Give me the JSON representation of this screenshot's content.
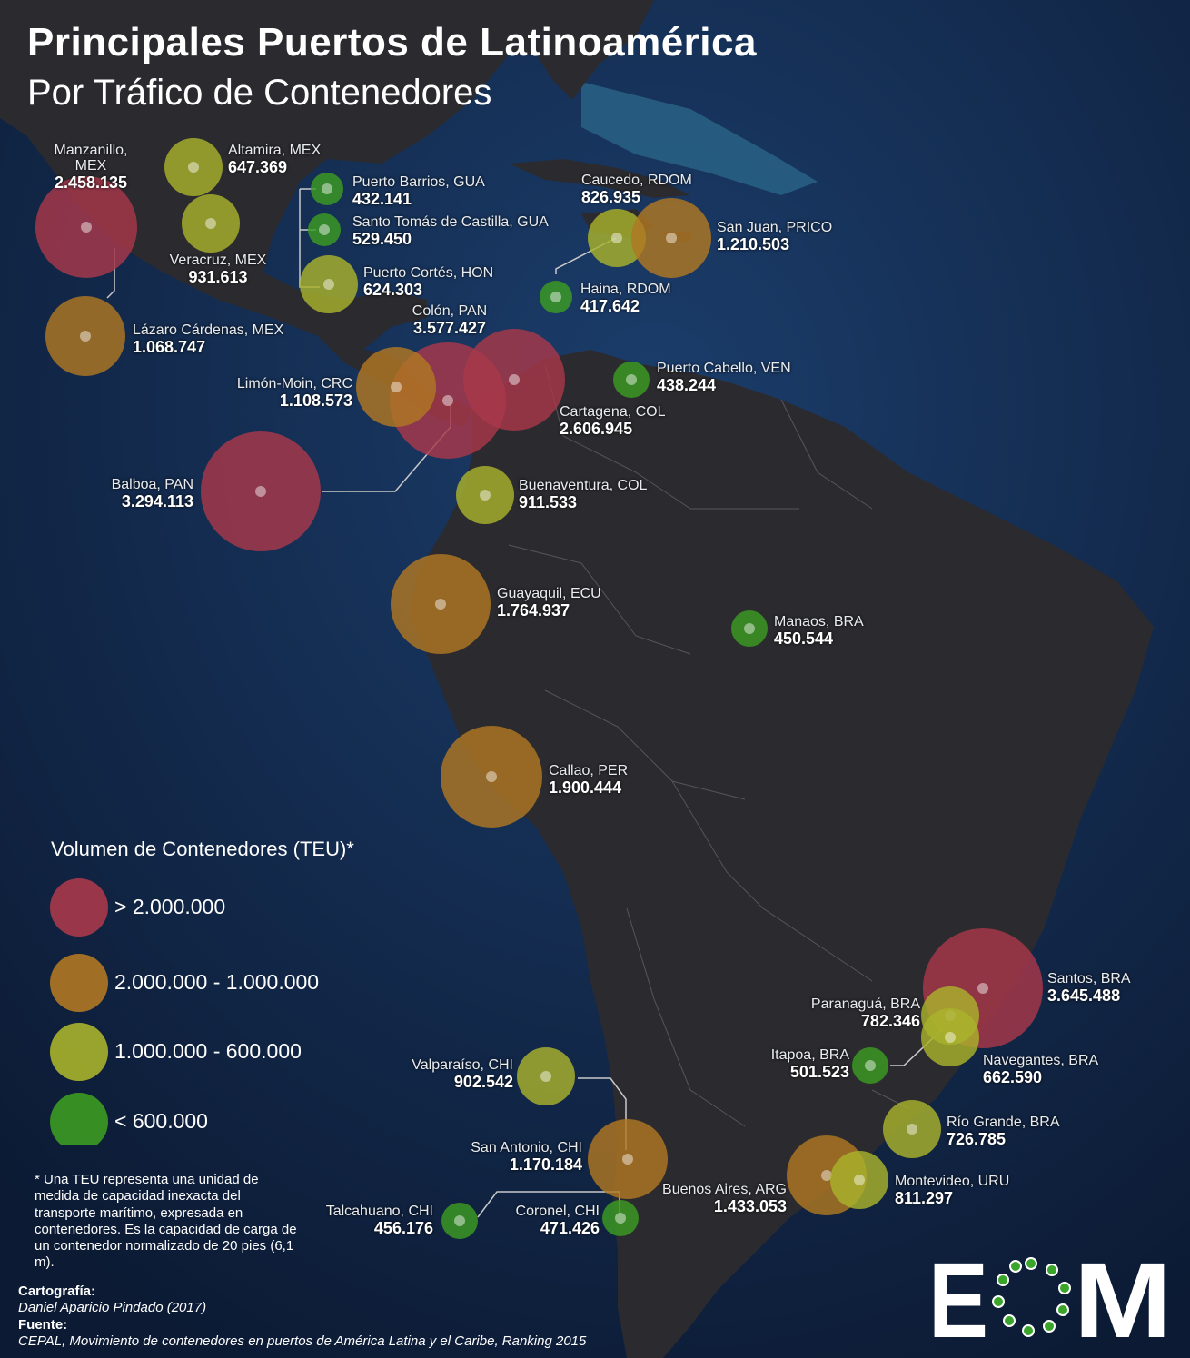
{
  "title": "Principales Puertos de Latinoamérica",
  "subtitle": "Por Tráfico de Contenedores",
  "colors": {
    "ocean": "#10213f",
    "land": "#2b2b2f",
    "red": "#a8384a",
    "orange": "#b07822",
    "yellow": "#a9b22c",
    "green": "#3c9b22"
  },
  "ports": [
    {
      "name": "Manzanillo, MEX",
      "value": "2.458.135",
      "class": "red"
    },
    {
      "name": "Altamira, MEX",
      "value": "647.369",
      "class": "yellow"
    },
    {
      "name": "Veracruz, MEX",
      "value": "931.613",
      "class": "yellow"
    },
    {
      "name": "Lázaro Cárdenas, MEX",
      "value": "1.068.747",
      "class": "orange"
    },
    {
      "name": "Puerto Barrios, GUA",
      "value": "432.141",
      "class": "green"
    },
    {
      "name": "Santo Tomás de Castilla, GUA",
      "value": "529.450",
      "class": "green"
    },
    {
      "name": "Puerto Cortés, HON",
      "value": "624.303",
      "class": "yellow"
    },
    {
      "name": "Caucedo, RDOM",
      "value": "826.935",
      "class": "yellow"
    },
    {
      "name": "San Juan, PRICO",
      "value": "1.210.503",
      "class": "orange"
    },
    {
      "name": "Haina, RDOM",
      "value": "417.642",
      "class": "green"
    },
    {
      "name": "Colón, PAN",
      "value": "3.577.427",
      "class": "red"
    },
    {
      "name": "Limón-Moin, CRC",
      "value": "1.108.573",
      "class": "orange"
    },
    {
      "name": "Puerto Cabello, VEN",
      "value": "438.244",
      "class": "green"
    },
    {
      "name": "Cartagena, COL",
      "value": "2.606.945",
      "class": "red"
    },
    {
      "name": "Balboa, PAN",
      "value": "3.294.113",
      "class": "red"
    },
    {
      "name": "Buenaventura, COL",
      "value": "911.533",
      "class": "yellow"
    },
    {
      "name": "Guayaquil, ECU",
      "value": "1.764.937",
      "class": "orange"
    },
    {
      "name": "Manaos, BRA",
      "value": "450.544",
      "class": "green"
    },
    {
      "name": "Callao, PER",
      "value": "1.900.444",
      "class": "orange"
    },
    {
      "name": "Santos, BRA",
      "value": "3.645.488",
      "class": "red"
    },
    {
      "name": "Paranaguá, BRA",
      "value": "782.346",
      "class": "yellow"
    },
    {
      "name": "Itapoa, BRA",
      "value": "501.523",
      "class": "green"
    },
    {
      "name": "Navegantes, BRA",
      "value": "662.590",
      "class": "yellow"
    },
    {
      "name": "Valparaíso, CHI",
      "value": "902.542",
      "class": "yellow"
    },
    {
      "name": "Río Grande, BRA",
      "value": "726.785",
      "class": "yellow"
    },
    {
      "name": "San Antonio, CHI",
      "value": "1.170.184",
      "class": "orange"
    },
    {
      "name": "Buenos Aires, ARG",
      "value": "1.433.053",
      "class": "orange"
    },
    {
      "name": "Montevideo, URU",
      "value": "811.297",
      "class": "yellow"
    },
    {
      "name": "Talcahuano, CHI",
      "value": "456.176",
      "class": "green"
    },
    {
      "name": "Coronel, CHI",
      "value": "471.426",
      "class": "green"
    }
  ],
  "legend": {
    "title": "Volumen de Contenedores (TEU)*",
    "items": [
      {
        "label": "> 2.000.000",
        "class": "red"
      },
      {
        "label": "2.000.000 - 1.000.000",
        "class": "orange"
      },
      {
        "label": "1.000.000 - 600.000",
        "class": "yellow"
      },
      {
        "label": "< 600.000",
        "class": "green"
      }
    ]
  },
  "note": "* Una TEU representa una unidad de medida de capacidad inexacta del transporte marítimo, expresada en contenedores. Es la capacidad de carga de un contenedor normalizado de 20 pies (6,1 m).",
  "credits": {
    "cartography_label": "Cartografía:",
    "cartography": "Daniel Aparicio Pindado (2017)",
    "source_label": "Fuente:",
    "source": "CEPAL, Movimiento de contenedores en puertos de América Latina y el Caribe, Ranking 2015"
  },
  "logo_text": "EOM"
}
